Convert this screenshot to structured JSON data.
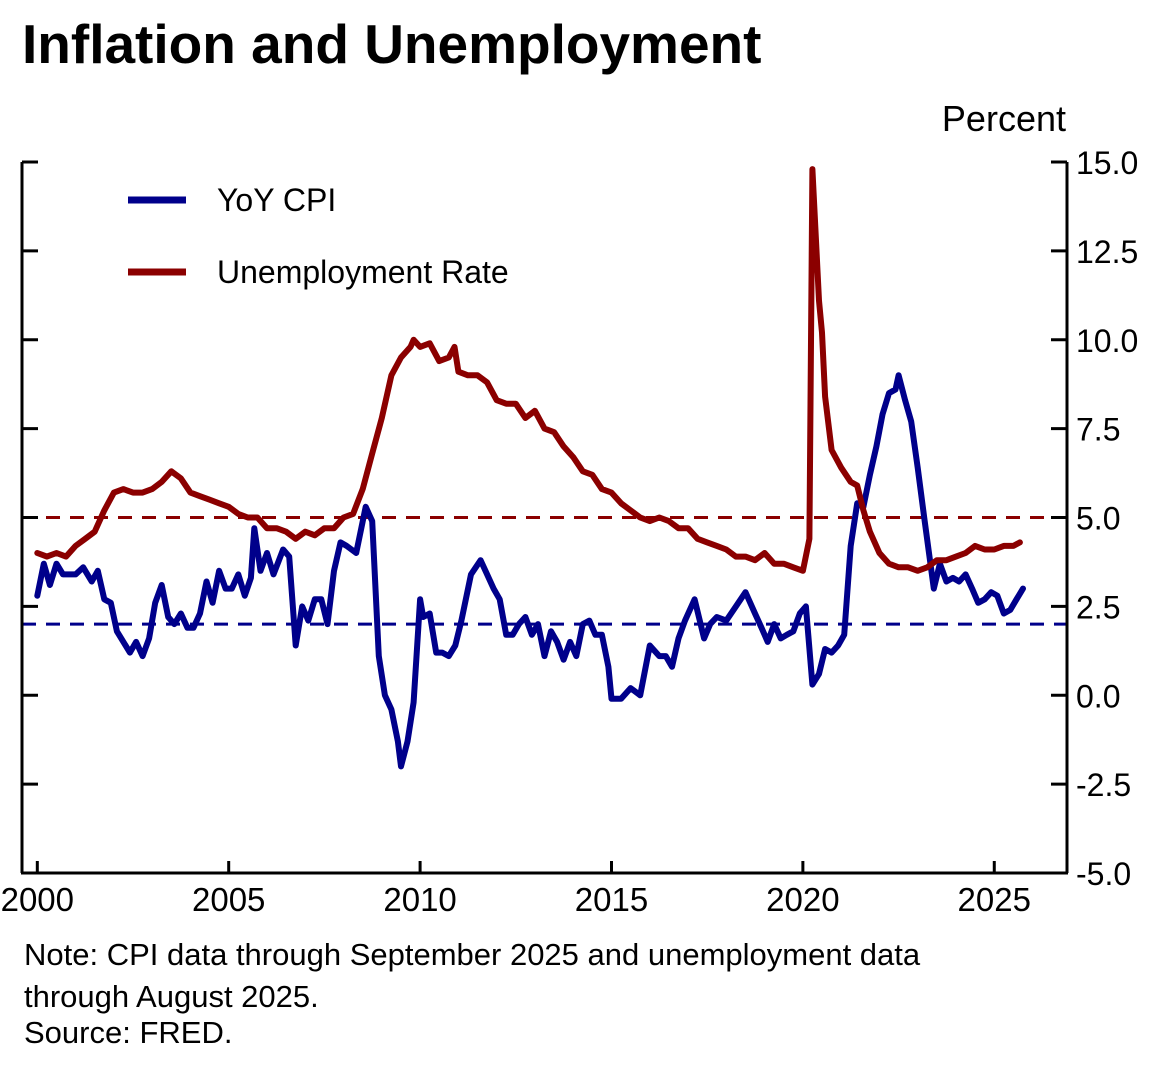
{
  "chart_data": {
    "type": "line",
    "title": "Inflation and Unemployment",
    "ylabel": "Percent",
    "xlim": [
      1999.6,
      2026.9
    ],
    "ylim": [
      -5.0,
      15.0
    ],
    "x_ticks": [
      2000,
      2005,
      2010,
      2015,
      2020,
      2025
    ],
    "x_tick_labels": [
      "2000",
      "2005",
      "2010",
      "2015",
      "2020",
      "2025"
    ],
    "y_ticks": [
      -5.0,
      -2.5,
      0.0,
      2.5,
      5.0,
      7.5,
      10.0,
      12.5,
      15.0
    ],
    "y_tick_labels": [
      "-5.0",
      "-2.5",
      "0.0",
      "2.5",
      "5.0",
      "7.5",
      "10.0",
      "12.5",
      "15.0"
    ],
    "y_axis_side": "right",
    "grid": false,
    "legend_position": "top-left",
    "reference_lines": [
      {
        "value": 5.0,
        "color": "#8b0000",
        "style": "dashed"
      },
      {
        "value": 2.0,
        "color": "#00008b",
        "style": "dashed"
      }
    ],
    "series": [
      {
        "name": "YoY CPI",
        "color": "#00008b",
        "points": [
          [
            2000.0,
            2.8
          ],
          [
            2000.17,
            3.7
          ],
          [
            2000.33,
            3.1
          ],
          [
            2000.5,
            3.7
          ],
          [
            2000.67,
            3.4
          ],
          [
            2000.83,
            3.4
          ],
          [
            2001.0,
            3.4
          ],
          [
            2001.2,
            3.6
          ],
          [
            2001.42,
            3.2
          ],
          [
            2001.58,
            3.5
          ],
          [
            2001.75,
            2.7
          ],
          [
            2001.92,
            2.6
          ],
          [
            2002.08,
            1.8
          ],
          [
            2002.25,
            1.5
          ],
          [
            2002.42,
            1.2
          ],
          [
            2002.58,
            1.5
          ],
          [
            2002.75,
            1.1
          ],
          [
            2002.92,
            1.6
          ],
          [
            2003.08,
            2.6
          ],
          [
            2003.25,
            3.1
          ],
          [
            2003.42,
            2.2
          ],
          [
            2003.58,
            2.0
          ],
          [
            2003.75,
            2.3
          ],
          [
            2003.92,
            1.9
          ],
          [
            2004.08,
            1.9
          ],
          [
            2004.25,
            2.3
          ],
          [
            2004.42,
            3.2
          ],
          [
            2004.58,
            2.6
          ],
          [
            2004.75,
            3.5
          ],
          [
            2004.92,
            3.0
          ],
          [
            2005.08,
            3.0
          ],
          [
            2005.25,
            3.4
          ],
          [
            2005.42,
            2.8
          ],
          [
            2005.58,
            3.3
          ],
          [
            2005.67,
            4.7
          ],
          [
            2005.83,
            3.5
          ],
          [
            2006.0,
            4.0
          ],
          [
            2006.17,
            3.4
          ],
          [
            2006.42,
            4.1
          ],
          [
            2006.58,
            3.9
          ],
          [
            2006.75,
            1.4
          ],
          [
            2006.92,
            2.5
          ],
          [
            2007.08,
            2.1
          ],
          [
            2007.25,
            2.7
          ],
          [
            2007.42,
            2.7
          ],
          [
            2007.58,
            2.0
          ],
          [
            2007.75,
            3.5
          ],
          [
            2007.92,
            4.3
          ],
          [
            2008.08,
            4.2
          ],
          [
            2008.33,
            4.0
          ],
          [
            2008.58,
            5.3
          ],
          [
            2008.75,
            4.9
          ],
          [
            2008.92,
            1.1
          ],
          [
            2009.08,
            0.0
          ],
          [
            2009.25,
            -0.4
          ],
          [
            2009.42,
            -1.3
          ],
          [
            2009.5,
            -2.0
          ],
          [
            2009.67,
            -1.3
          ],
          [
            2009.83,
            -0.2
          ],
          [
            2010.0,
            2.7
          ],
          [
            2010.08,
            2.2
          ],
          [
            2010.25,
            2.3
          ],
          [
            2010.42,
            1.2
          ],
          [
            2010.58,
            1.2
          ],
          [
            2010.75,
            1.1
          ],
          [
            2010.92,
            1.4
          ],
          [
            2011.08,
            2.1
          ],
          [
            2011.33,
            3.4
          ],
          [
            2011.58,
            3.8
          ],
          [
            2011.75,
            3.4
          ],
          [
            2011.92,
            3.0
          ],
          [
            2012.08,
            2.7
          ],
          [
            2012.25,
            1.7
          ],
          [
            2012.42,
            1.7
          ],
          [
            2012.58,
            2.0
          ],
          [
            2012.75,
            2.2
          ],
          [
            2012.92,
            1.7
          ],
          [
            2013.08,
            2.0
          ],
          [
            2013.25,
            1.1
          ],
          [
            2013.42,
            1.8
          ],
          [
            2013.58,
            1.5
          ],
          [
            2013.75,
            1.0
          ],
          [
            2013.92,
            1.5
          ],
          [
            2014.08,
            1.1
          ],
          [
            2014.25,
            2.0
          ],
          [
            2014.42,
            2.1
          ],
          [
            2014.58,
            1.7
          ],
          [
            2014.75,
            1.7
          ],
          [
            2014.92,
            0.8
          ],
          [
            2015.0,
            -0.1
          ],
          [
            2015.25,
            -0.1
          ],
          [
            2015.5,
            0.2
          ],
          [
            2015.75,
            0.0
          ],
          [
            2016.0,
            1.4
          ],
          [
            2016.25,
            1.1
          ],
          [
            2016.42,
            1.1
          ],
          [
            2016.58,
            0.8
          ],
          [
            2016.75,
            1.6
          ],
          [
            2016.92,
            2.1
          ],
          [
            2017.17,
            2.7
          ],
          [
            2017.42,
            1.6
          ],
          [
            2017.58,
            2.0
          ],
          [
            2017.75,
            2.2
          ],
          [
            2018.0,
            2.1
          ],
          [
            2018.25,
            2.5
          ],
          [
            2018.5,
            2.9
          ],
          [
            2018.75,
            2.3
          ],
          [
            2018.92,
            1.9
          ],
          [
            2019.08,
            1.5
          ],
          [
            2019.25,
            2.0
          ],
          [
            2019.42,
            1.6
          ],
          [
            2019.58,
            1.7
          ],
          [
            2019.75,
            1.8
          ],
          [
            2019.92,
            2.3
          ],
          [
            2020.08,
            2.5
          ],
          [
            2020.25,
            0.3
          ],
          [
            2020.42,
            0.6
          ],
          [
            2020.58,
            1.3
          ],
          [
            2020.75,
            1.2
          ],
          [
            2020.92,
            1.4
          ],
          [
            2021.08,
            1.7
          ],
          [
            2021.25,
            4.2
          ],
          [
            2021.42,
            5.4
          ],
          [
            2021.58,
            5.3
          ],
          [
            2021.75,
            6.2
          ],
          [
            2021.92,
            7.0
          ],
          [
            2022.08,
            7.9
          ],
          [
            2022.25,
            8.5
          ],
          [
            2022.42,
            8.6
          ],
          [
            2022.5,
            9.0
          ],
          [
            2022.67,
            8.3
          ],
          [
            2022.83,
            7.7
          ],
          [
            2023.0,
            6.4
          ],
          [
            2023.17,
            5.0
          ],
          [
            2023.42,
            3.0
          ],
          [
            2023.58,
            3.7
          ],
          [
            2023.75,
            3.2
          ],
          [
            2023.92,
            3.3
          ],
          [
            2024.08,
            3.2
          ],
          [
            2024.25,
            3.4
          ],
          [
            2024.42,
            3.0
          ],
          [
            2024.58,
            2.6
          ],
          [
            2024.75,
            2.7
          ],
          [
            2024.92,
            2.9
          ],
          [
            2025.08,
            2.8
          ],
          [
            2025.25,
            2.3
          ],
          [
            2025.42,
            2.4
          ],
          [
            2025.58,
            2.7
          ],
          [
            2025.75,
            3.0
          ]
        ]
      },
      {
        "name": "Unemployment Rate",
        "color": "#8b0000",
        "points": [
          [
            2000.0,
            4.0
          ],
          [
            2000.25,
            3.9
          ],
          [
            2000.5,
            4.0
          ],
          [
            2000.75,
            3.9
          ],
          [
            2001.0,
            4.2
          ],
          [
            2001.25,
            4.4
          ],
          [
            2001.5,
            4.6
          ],
          [
            2001.75,
            5.2
          ],
          [
            2002.0,
            5.7
          ],
          [
            2002.25,
            5.8
          ],
          [
            2002.5,
            5.7
          ],
          [
            2002.75,
            5.7
          ],
          [
            2003.0,
            5.8
          ],
          [
            2003.25,
            6.0
          ],
          [
            2003.5,
            6.3
          ],
          [
            2003.75,
            6.1
          ],
          [
            2004.0,
            5.7
          ],
          [
            2004.25,
            5.6
          ],
          [
            2004.5,
            5.5
          ],
          [
            2004.75,
            5.4
          ],
          [
            2005.0,
            5.3
          ],
          [
            2005.25,
            5.1
          ],
          [
            2005.5,
            5.0
          ],
          [
            2005.75,
            5.0
          ],
          [
            2006.0,
            4.7
          ],
          [
            2006.25,
            4.7
          ],
          [
            2006.5,
            4.6
          ],
          [
            2006.75,
            4.4
          ],
          [
            2007.0,
            4.6
          ],
          [
            2007.25,
            4.5
          ],
          [
            2007.5,
            4.7
          ],
          [
            2007.75,
            4.7
          ],
          [
            2008.0,
            5.0
          ],
          [
            2008.25,
            5.1
          ],
          [
            2008.5,
            5.8
          ],
          [
            2008.75,
            6.8
          ],
          [
            2009.0,
            7.8
          ],
          [
            2009.25,
            9.0
          ],
          [
            2009.5,
            9.5
          ],
          [
            2009.75,
            9.8
          ],
          [
            2009.83,
            10.0
          ],
          [
            2010.0,
            9.8
          ],
          [
            2010.25,
            9.9
          ],
          [
            2010.5,
            9.4
          ],
          [
            2010.75,
            9.5
          ],
          [
            2010.9,
            9.8
          ],
          [
            2011.0,
            9.1
          ],
          [
            2011.25,
            9.0
          ],
          [
            2011.5,
            9.0
          ],
          [
            2011.75,
            8.8
          ],
          [
            2012.0,
            8.3
          ],
          [
            2012.25,
            8.2
          ],
          [
            2012.5,
            8.2
          ],
          [
            2012.75,
            7.8
          ],
          [
            2013.0,
            8.0
          ],
          [
            2013.25,
            7.5
          ],
          [
            2013.5,
            7.4
          ],
          [
            2013.75,
            7.0
          ],
          [
            2014.0,
            6.7
          ],
          [
            2014.25,
            6.3
          ],
          [
            2014.5,
            6.2
          ],
          [
            2014.75,
            5.8
          ],
          [
            2015.0,
            5.7
          ],
          [
            2015.25,
            5.4
          ],
          [
            2015.5,
            5.2
          ],
          [
            2015.75,
            5.0
          ],
          [
            2016.0,
            4.9
          ],
          [
            2016.25,
            5.0
          ],
          [
            2016.5,
            4.9
          ],
          [
            2016.75,
            4.7
          ],
          [
            2017.0,
            4.7
          ],
          [
            2017.25,
            4.4
          ],
          [
            2017.5,
            4.3
          ],
          [
            2017.75,
            4.2
          ],
          [
            2018.0,
            4.1
          ],
          [
            2018.25,
            3.9
          ],
          [
            2018.5,
            3.9
          ],
          [
            2018.75,
            3.8
          ],
          [
            2019.0,
            4.0
          ],
          [
            2019.25,
            3.7
          ],
          [
            2019.5,
            3.7
          ],
          [
            2019.75,
            3.6
          ],
          [
            2020.0,
            3.5
          ],
          [
            2020.17,
            4.4
          ],
          [
            2020.25,
            14.8
          ],
          [
            2020.42,
            11.1
          ],
          [
            2020.5,
            10.2
          ],
          [
            2020.58,
            8.4
          ],
          [
            2020.75,
            6.9
          ],
          [
            2021.0,
            6.4
          ],
          [
            2021.25,
            6.0
          ],
          [
            2021.42,
            5.9
          ],
          [
            2021.58,
            5.2
          ],
          [
            2021.75,
            4.6
          ],
          [
            2022.0,
            4.0
          ],
          [
            2022.25,
            3.7
          ],
          [
            2022.5,
            3.6
          ],
          [
            2022.75,
            3.6
          ],
          [
            2023.0,
            3.5
          ],
          [
            2023.25,
            3.6
          ],
          [
            2023.5,
            3.8
          ],
          [
            2023.75,
            3.8
          ],
          [
            2024.0,
            3.9
          ],
          [
            2024.25,
            4.0
          ],
          [
            2024.5,
            4.2
          ],
          [
            2024.75,
            4.1
          ],
          [
            2025.0,
            4.1
          ],
          [
            2025.25,
            4.2
          ],
          [
            2025.5,
            4.2
          ],
          [
            2025.67,
            4.3
          ]
        ]
      }
    ]
  },
  "note": {
    "line1": "Note: CPI data through September 2025 and unemployment data",
    "line2": "through August 2025."
  },
  "source": "Source: FRED."
}
